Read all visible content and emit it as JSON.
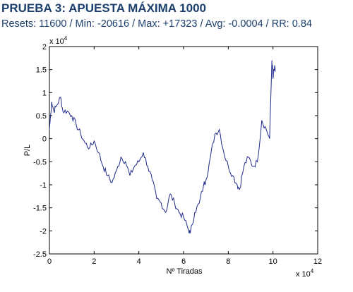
{
  "header": {
    "title": "PRUEBA 3: APUESTA MÁXIMA 1000",
    "subtitle": "Resets: 11600 / Min: -20616 / Max: +17323 / Avg: -0.0004 / RR: 0.84"
  },
  "colors": {
    "header_text": "#1c3f6e",
    "line": "#1f2a8c",
    "axes": "#000000"
  },
  "chart_data": {
    "type": "line",
    "title": "",
    "xlabel": "Nº Tiradas",
    "ylabel": "P/L",
    "x_exponent_label": "x 10",
    "y_exponent_label": "x 10",
    "exponent_power": "4",
    "xlim": [
      0,
      12
    ],
    "ylim": [
      -2.5,
      2
    ],
    "x_scale_note": "x 10^4",
    "y_scale_note": "x 10^4",
    "x_ticks": [
      0,
      2,
      4,
      6,
      8,
      10,
      12
    ],
    "x_tick_labels": [
      "0",
      "2",
      "4",
      "6",
      "8",
      "10",
      "12"
    ],
    "y_ticks": [
      2,
      1.5,
      1,
      0.5,
      0,
      -0.5,
      -1,
      -1.5,
      -2,
      -2.5
    ],
    "y_tick_labels": [
      "2",
      "1.5",
      "1",
      "0.5",
      "0",
      "-0.5",
      "-1",
      "-1.5",
      "-2",
      "-2.5"
    ],
    "grid": false,
    "series": [
      {
        "x": [
          0,
          0.1,
          0.2,
          0.3,
          0.5,
          0.6,
          0.8,
          1.0,
          1.2,
          1.4,
          1.6,
          1.8,
          2.0,
          2.2,
          2.4,
          2.6,
          2.8,
          3.0,
          3.2,
          3.4,
          3.6,
          3.8,
          4.0,
          4.2,
          4.4,
          4.6,
          4.8,
          5.0,
          5.2,
          5.4,
          5.6,
          5.8,
          6.0,
          6.2,
          6.3,
          6.5,
          6.7,
          6.9,
          7.0,
          7.2,
          7.4,
          7.6,
          7.8,
          8.0,
          8.2,
          8.4,
          8.5,
          8.7,
          8.9,
          9.1,
          9.3,
          9.5,
          9.7,
          9.85,
          9.95,
          10.0,
          10.05,
          10.1
        ],
        "y": [
          0.2,
          0.8,
          0.6,
          0.7,
          0.9,
          0.6,
          0.6,
          0.5,
          0.3,
          0.1,
          -0.1,
          -0.2,
          -0.05,
          -0.3,
          -0.6,
          -0.8,
          -0.95,
          -0.7,
          -0.4,
          -0.5,
          -0.8,
          -0.6,
          -0.5,
          -0.3,
          -0.6,
          -0.9,
          -1.3,
          -1.4,
          -1.6,
          -1.2,
          -1.4,
          -1.6,
          -1.7,
          -1.95,
          -2.05,
          -1.6,
          -1.4,
          -1.0,
          -0.9,
          -0.4,
          0.1,
          0.2,
          -0.3,
          -0.6,
          -0.8,
          -1.0,
          -1.1,
          -0.6,
          -0.4,
          -0.6,
          -0.5,
          0.4,
          0.2,
          0.0,
          1.7,
          1.3,
          1.5,
          1.45
        ]
      }
    ]
  }
}
